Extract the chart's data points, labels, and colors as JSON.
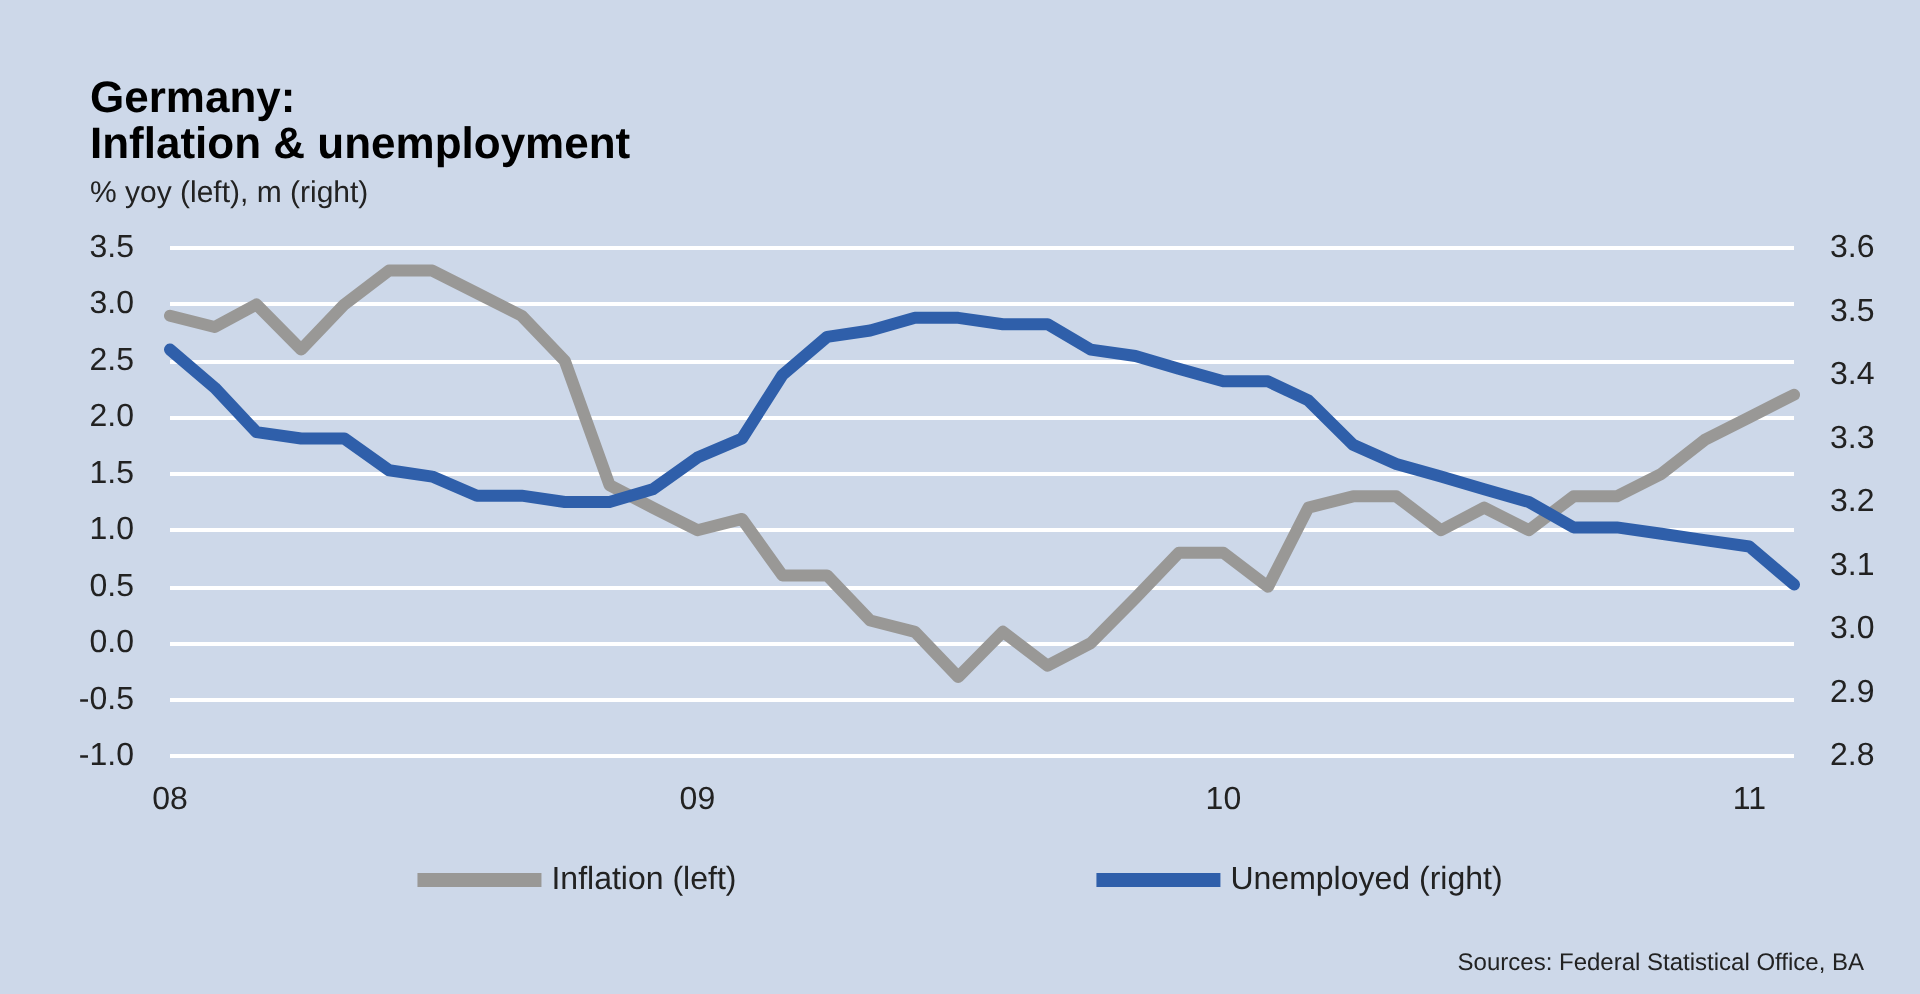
{
  "chart_data": {
    "type": "line",
    "title": "Germany:\nInflation & unemployment",
    "subtitle": "% yoy (left), m (right)",
    "x": [
      "2008-01",
      "2008-02",
      "2008-03",
      "2008-04",
      "2008-05",
      "2008-06",
      "2008-07",
      "2008-08",
      "2008-09",
      "2008-10",
      "2008-11",
      "2008-12",
      "2009-01",
      "2009-02",
      "2009-03",
      "2009-04",
      "2009-05",
      "2009-06",
      "2009-07",
      "2009-08",
      "2009-09",
      "2009-10",
      "2009-11",
      "2009-12",
      "2010-01",
      "2010-02",
      "2010-03",
      "2010-04",
      "2010-05",
      "2010-06",
      "2010-07",
      "2010-08",
      "2010-09",
      "2010-10",
      "2010-11",
      "2010-12",
      "2011-01",
      "2011-02"
    ],
    "series": [
      {
        "name": "Inflation (left)",
        "color": "#999896",
        "values": [
          2.9,
          2.8,
          3.0,
          2.6,
          3.0,
          3.3,
          3.3,
          3.1,
          2.9,
          2.5,
          1.4,
          1.2,
          1.0,
          1.1,
          0.6,
          0.6,
          0.2,
          0.1,
          -0.3,
          0.1,
          -0.2,
          0.0,
          0.4,
          0.8,
          0.8,
          0.5,
          1.2,
          1.3,
          1.3,
          1.0,
          1.2,
          1.0,
          1.3,
          1.3,
          1.5,
          1.8,
          2.0,
          2.2
        ]
      },
      {
        "name": "Unemployed (right)",
        "color": "#2f5faa",
        "axis": "y2",
        "values": [
          3.44,
          3.38,
          3.31,
          3.3,
          3.3,
          3.25,
          3.24,
          3.21,
          3.21,
          3.2,
          3.2,
          3.22,
          3.27,
          3.3,
          3.4,
          3.46,
          3.47,
          3.49,
          3.49,
          3.48,
          3.48,
          3.44,
          3.43,
          3.41,
          3.39,
          3.39,
          3.36,
          3.29,
          3.26,
          3.24,
          3.22,
          3.2,
          3.16,
          3.16,
          3.15,
          3.14,
          3.13,
          3.07
        ]
      }
    ],
    "xlim": [
      "2008-01",
      "2011-02"
    ],
    "xticks": [
      {
        "value": "2008-01",
        "label": "08"
      },
      {
        "value": "2009-01",
        "label": "09"
      },
      {
        "value": "2010-01",
        "label": "10"
      },
      {
        "value": "2011-01",
        "label": "11"
      }
    ],
    "ylim": [
      -1.0,
      3.5
    ],
    "yticks": [
      {
        "value": -1,
        "label": "-1.0"
      },
      {
        "value": -0.5,
        "label": "-0.5"
      },
      {
        "value": 0,
        "label": "0.0"
      },
      {
        "value": 0.5,
        "label": "0.5"
      },
      {
        "value": 1,
        "label": "1.0"
      },
      {
        "value": 1.5,
        "label": "1.5"
      },
      {
        "value": 2,
        "label": "2.0"
      },
      {
        "value": 2.5,
        "label": "2.5"
      },
      {
        "value": 3,
        "label": "3.0"
      },
      {
        "value": 3.5,
        "label": "3.5"
      }
    ],
    "y2lim": [
      2.8,
      3.6
    ],
    "y2ticks": [
      {
        "value": 2.8,
        "label": "2.8"
      },
      {
        "value": 2.9,
        "label": "2.9"
      },
      {
        "value": 3,
        "label": "3.0"
      },
      {
        "value": 3.1,
        "label": "3.1"
      },
      {
        "value": 3.2,
        "label": "3.2"
      },
      {
        "value": 3.3,
        "label": "3.3"
      },
      {
        "value": 3.4,
        "label": "3.4"
      },
      {
        "value": 3.5,
        "label": "3.5"
      },
      {
        "value": 3.6,
        "label": "3.6"
      }
    ],
    "grid": "y",
    "legend": "bottom",
    "marker": "none",
    "line_style": "solid",
    "annotations": [
      "Sources: Federal Statistical Office, BA"
    ]
  }
}
